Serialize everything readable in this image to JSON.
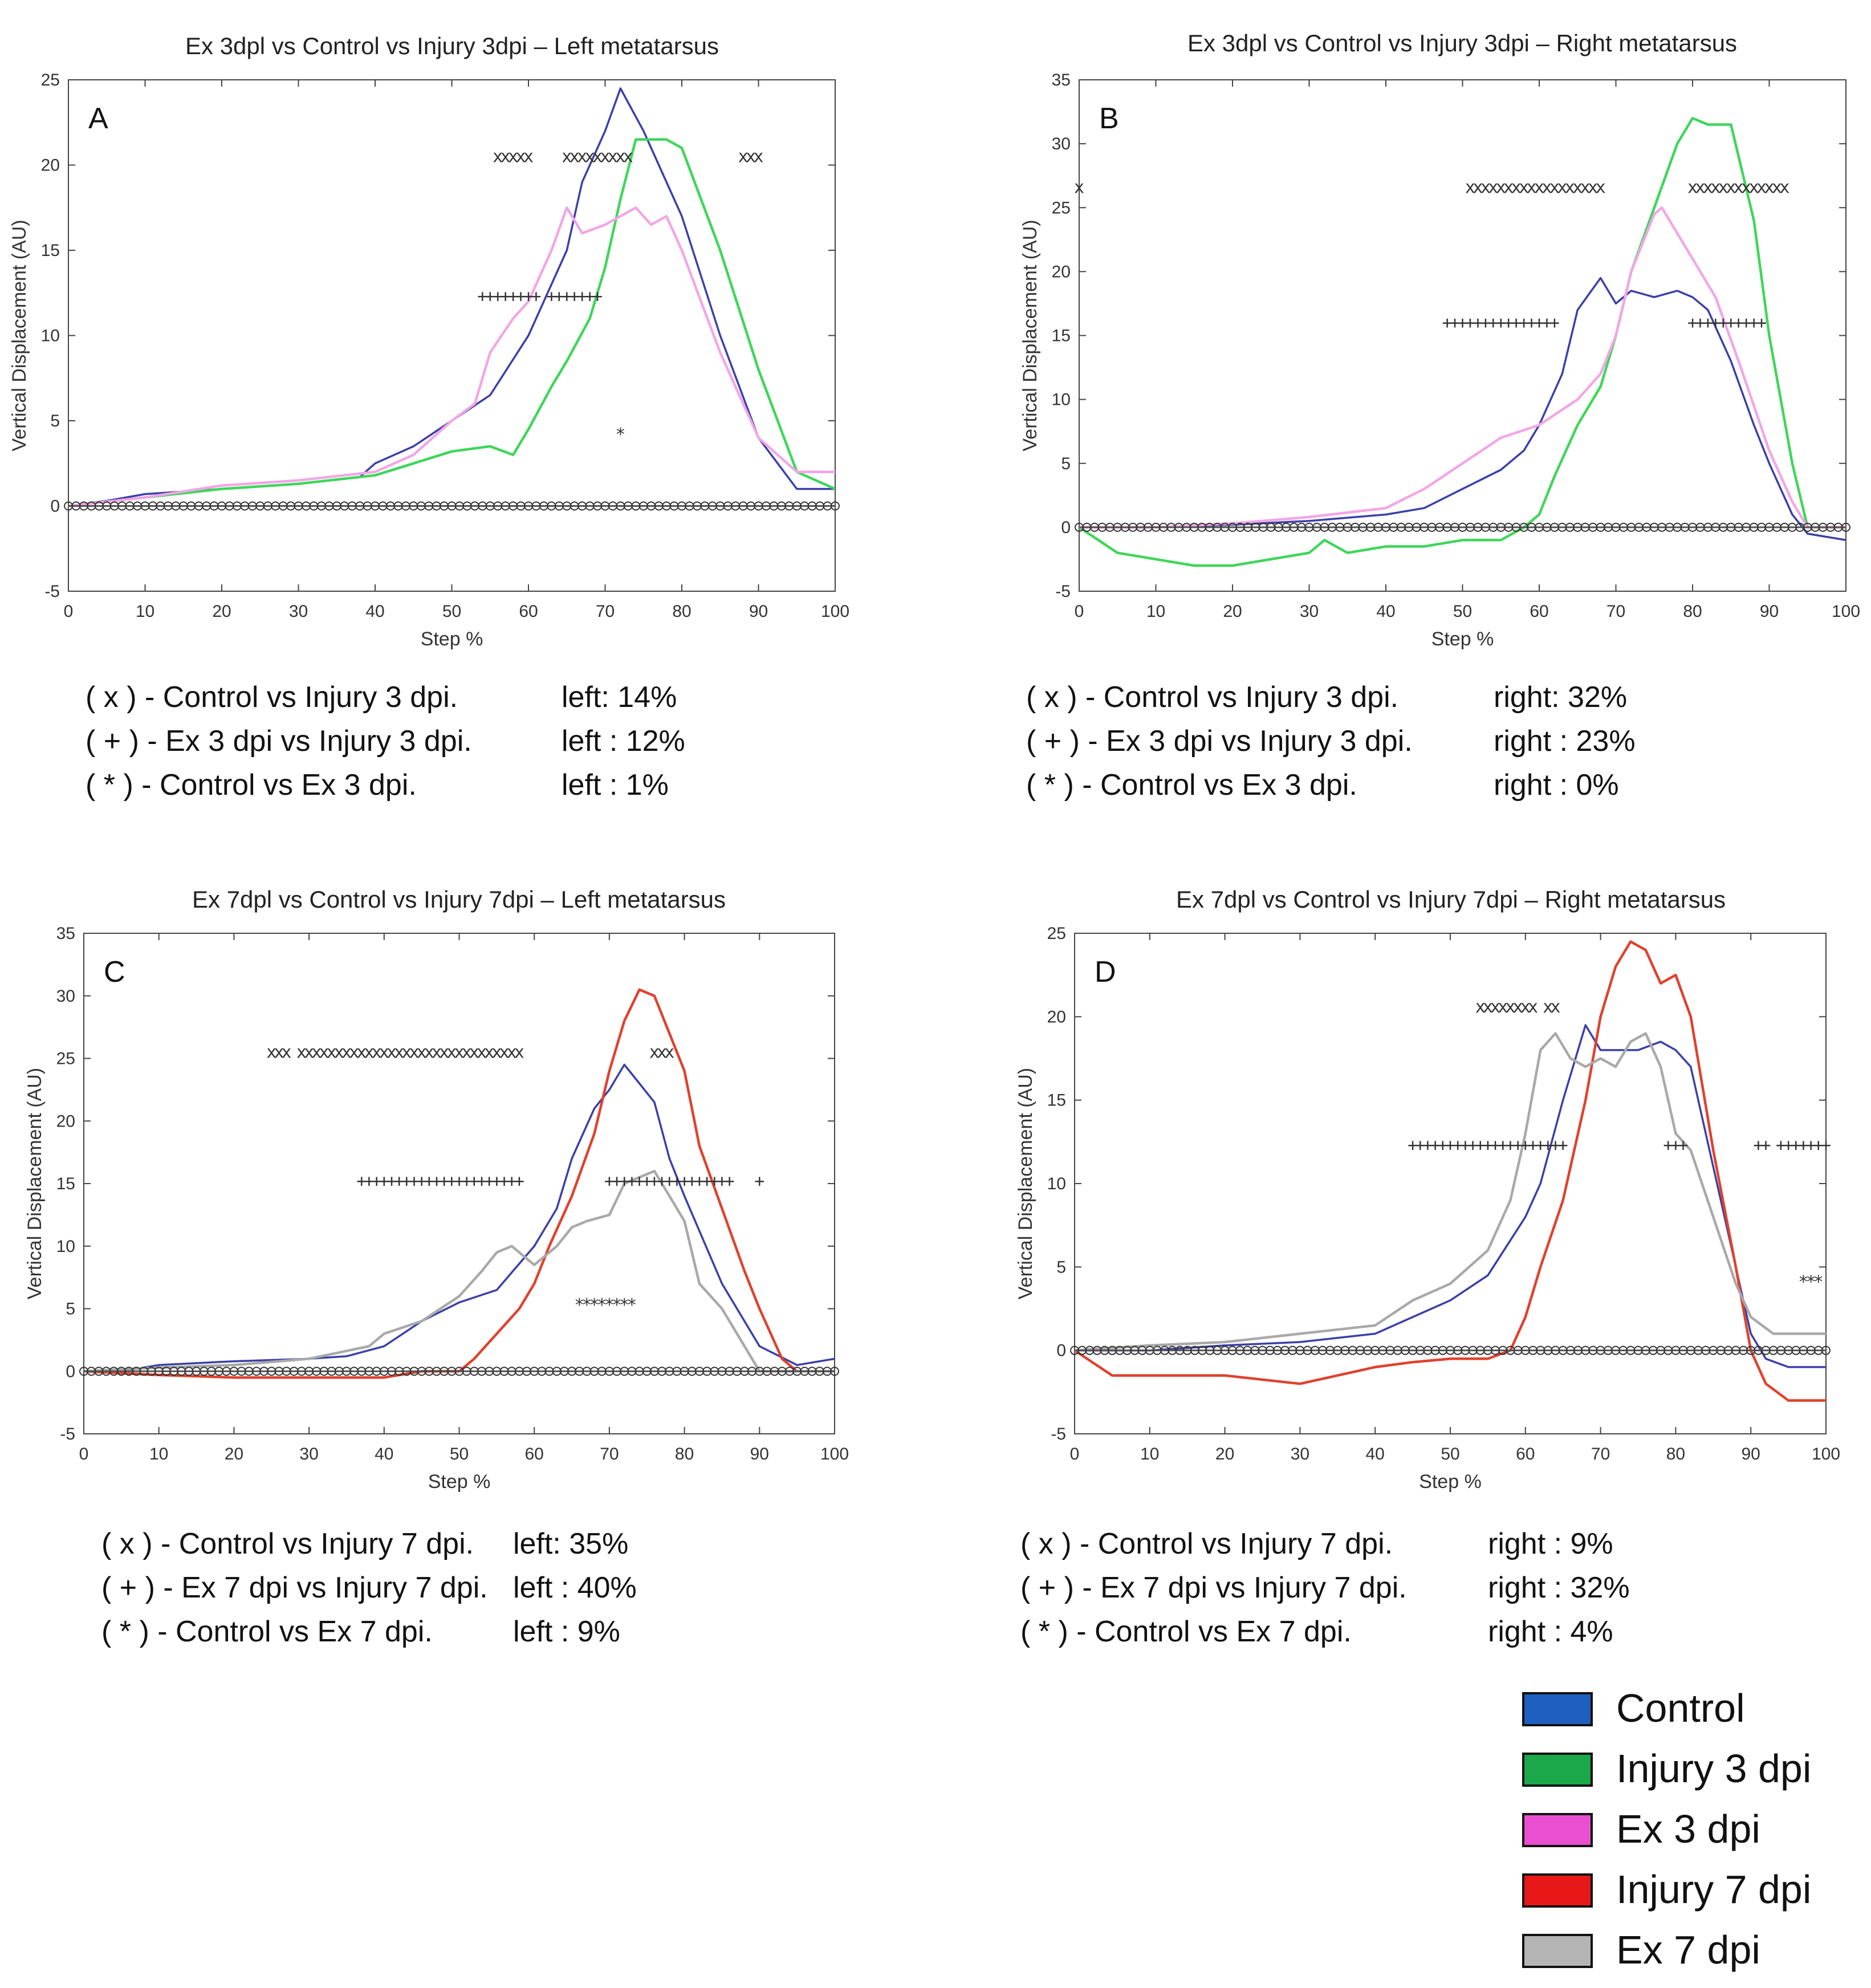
{
  "legend": {
    "items": [
      {
        "label": "Control",
        "color": "#1f5fbf"
      },
      {
        "label": "Injury 3 dpi",
        "color": "#1aa84a"
      },
      {
        "label": "Ex 3 dpi",
        "color": "#e94fd0"
      },
      {
        "label": "Injury 7 dpi",
        "color": "#e81818"
      },
      {
        "label": "Ex 7 dpi",
        "color": "#b4b4b4"
      }
    ]
  },
  "line_colors": {
    "control": "#3b3fa8",
    "injury3": "#3fd65a",
    "ex3": "#f2a6e6",
    "injury7": "#e0412e",
    "ex7": "#a9a9a9"
  },
  "chart_data": [
    {
      "id": "A",
      "type": "line",
      "title": "Ex 3dpl vs Control vs Injury 3dpi – Left metatarsus",
      "xlabel": "Step %",
      "ylabel": "Vertical Displacement (AU)",
      "xlim": [
        0,
        100
      ],
      "ylim": [
        -5,
        25
      ],
      "xticks": [
        0,
        10,
        20,
        30,
        40,
        50,
        60,
        70,
        80,
        90,
        100
      ],
      "yticks": [
        -5,
        0,
        5,
        10,
        15,
        20,
        25
      ],
      "series": [
        {
          "key": "control",
          "x": [
            0,
            5,
            10,
            20,
            30,
            38,
            40,
            45,
            50,
            55,
            60,
            65,
            67,
            70,
            72,
            75,
            78,
            80,
            85,
            90,
            95,
            100
          ],
          "y": [
            0,
            0.3,
            0.7,
            1.0,
            1.3,
            1.7,
            2.5,
            3.5,
            5,
            6.5,
            10,
            15,
            19,
            22,
            24.5,
            22,
            19,
            17,
            10,
            4,
            1,
            1
          ]
        },
        {
          "key": "injury3",
          "x": [
            0,
            10,
            20,
            30,
            40,
            45,
            50,
            55,
            58,
            60,
            63,
            65,
            68,
            70,
            72,
            74,
            76,
            78,
            80,
            85,
            90,
            95,
            100
          ],
          "y": [
            0,
            0.5,
            1.0,
            1.3,
            1.8,
            2.5,
            3.2,
            3.5,
            3,
            4.5,
            7,
            8.5,
            11,
            14,
            18,
            21.5,
            21.5,
            21.5,
            21,
            15,
            8,
            2,
            1
          ]
        },
        {
          "key": "ex3",
          "x": [
            0,
            10,
            20,
            30,
            40,
            45,
            50,
            53,
            55,
            58,
            60,
            63,
            65,
            67,
            70,
            72,
            74,
            76,
            78,
            80,
            85,
            90,
            95,
            100
          ],
          "y": [
            0,
            0.5,
            1.2,
            1.5,
            2,
            3,
            5,
            6,
            9,
            11,
            12,
            15,
            17.5,
            16,
            16.5,
            17,
            17.5,
            16.5,
            17,
            15,
            9,
            4,
            2,
            2
          ]
        }
      ],
      "markers": [
        {
          "symbol": "x",
          "y": 20.5,
          "ranges": [
            [
              56,
              60
            ],
            [
              65,
              73
            ],
            [
              88,
              90
            ]
          ]
        },
        {
          "symbol": "+",
          "y": 12.3,
          "ranges": [
            [
              54,
              61
            ],
            [
              63,
              69
            ]
          ]
        },
        {
          "symbol": "*",
          "y": 4.2,
          "ranges": [
            [
              72,
              72
            ]
          ]
        }
      ],
      "zero_markers": true,
      "stats": [
        {
          "symbol": "( x ) - Control vs Injury 3 dpi.",
          "value": "left: 14%"
        },
        {
          "symbol": "( + ) - Ex 3 dpi vs Injury 3 dpi.",
          "value": "left : 12%"
        },
        {
          "symbol": "( * ) - Control vs Ex 3 dpi.",
          "value": "left :  1%"
        }
      ]
    },
    {
      "id": "B",
      "type": "line",
      "title": "Ex 3dpl vs Control vs Injury 3dpi – Right metatarsus",
      "xlabel": "Step %",
      "ylabel": "Vertical Displacement (AU)",
      "xlim": [
        0,
        100
      ],
      "ylim": [
        -5,
        35
      ],
      "xticks": [
        0,
        10,
        20,
        30,
        40,
        50,
        60,
        70,
        80,
        90,
        100
      ],
      "yticks": [
        -5,
        0,
        5,
        10,
        15,
        20,
        25,
        30,
        35
      ],
      "series": [
        {
          "key": "control",
          "x": [
            0,
            10,
            20,
            30,
            40,
            45,
            50,
            55,
            58,
            60,
            63,
            65,
            68,
            70,
            72,
            75,
            78,
            80,
            82,
            85,
            88,
            90,
            93,
            95,
            100
          ],
          "y": [
            0,
            0,
            0.2,
            0.5,
            1,
            1.5,
            3,
            4.5,
            6,
            8,
            12,
            17,
            19.5,
            17.5,
            18.5,
            18,
            18.5,
            18,
            17,
            13,
            8,
            5,
            1,
            -0.5,
            -1
          ]
        },
        {
          "key": "injury3",
          "x": [
            0,
            5,
            10,
            15,
            20,
            25,
            30,
            32,
            35,
            40,
            45,
            50,
            55,
            58,
            60,
            62,
            65,
            68,
            70,
            72,
            75,
            78,
            80,
            82,
            85,
            88,
            90,
            93,
            95,
            100
          ],
          "y": [
            0,
            -2,
            -2.5,
            -3,
            -3,
            -2.5,
            -2,
            -1,
            -2,
            -1.5,
            -1.5,
            -1,
            -1,
            0,
            1,
            4,
            8,
            11,
            15,
            20,
            25,
            30,
            32,
            31.5,
            31.5,
            24,
            15,
            5,
            0,
            0
          ]
        },
        {
          "key": "ex3",
          "x": [
            0,
            10,
            20,
            30,
            40,
            45,
            50,
            55,
            60,
            65,
            68,
            70,
            72,
            75,
            76,
            78,
            80,
            83,
            86,
            90,
            93,
            95,
            100
          ],
          "y": [
            0,
            0,
            0.3,
            0.8,
            1.5,
            3,
            5,
            7,
            8,
            10,
            12,
            15,
            20,
            24.5,
            25,
            23,
            21,
            18,
            13,
            6,
            2,
            0,
            0
          ]
        }
      ],
      "markers": [
        {
          "symbol": "x",
          "y": 26.6,
          "ranges": [
            [
              0,
              0
            ],
            [
              51,
              68
            ],
            [
              80,
              92
            ]
          ]
        },
        {
          "symbol": "+",
          "y": 16,
          "ranges": [
            [
              48,
              62
            ],
            [
              80,
              89
            ]
          ]
        }
      ],
      "zero_markers": true,
      "stats": [
        {
          "symbol": "( x ) - Control vs Injury 3 dpi.",
          "value": "right: 32%"
        },
        {
          "symbol": "( + ) - Ex 3 dpi vs Injury 3 dpi.",
          "value": "right : 23%"
        },
        {
          "symbol": "( * ) - Control vs Ex 3 dpi.",
          "value": "right : 0%"
        }
      ]
    },
    {
      "id": "C",
      "type": "line",
      "title": "Ex 7dpl vs Control vs Injury 7dpi – Left metatarsus",
      "xlabel": "Step %",
      "ylabel": "Vertical Displacement (AU)",
      "xlim": [
        0,
        100
      ],
      "ylim": [
        -5,
        35
      ],
      "xticks": [
        0,
        10,
        20,
        30,
        40,
        50,
        60,
        70,
        80,
        90,
        100
      ],
      "yticks": [
        -5,
        0,
        5,
        10,
        15,
        20,
        25,
        30,
        35
      ],
      "series": [
        {
          "key": "control",
          "x": [
            0,
            5,
            10,
            20,
            30,
            35,
            40,
            45,
            50,
            55,
            60,
            63,
            65,
            68,
            70,
            72,
            74,
            76,
            78,
            80,
            85,
            90,
            95,
            100
          ],
          "y": [
            0,
            0,
            0.5,
            0.8,
            1,
            1.2,
            2,
            4,
            5.5,
            6.5,
            10,
            13,
            17,
            21,
            22.5,
            24.5,
            23,
            21.5,
            17,
            14,
            7,
            2,
            0.5,
            1
          ]
        },
        {
          "key": "injury7",
          "x": [
            0,
            10,
            20,
            30,
            40,
            45,
            50,
            52,
            55,
            58,
            60,
            62,
            65,
            68,
            70,
            72,
            74,
            76,
            78,
            80,
            82,
            85,
            88,
            90,
            93,
            95,
            100
          ],
          "y": [
            0,
            -0.3,
            -0.5,
            -0.5,
            -0.5,
            0,
            0,
            1,
            3,
            5,
            7,
            10,
            14,
            19,
            24,
            28,
            30.5,
            30,
            27,
            24,
            18,
            13,
            8,
            5,
            1,
            0,
            0
          ]
        },
        {
          "key": "ex7",
          "x": [
            0,
            10,
            20,
            30,
            38,
            40,
            45,
            50,
            53,
            55,
            57,
            60,
            63,
            65,
            67,
            70,
            72,
            74,
            76,
            78,
            80,
            82,
            85,
            88,
            90,
            93,
            95,
            100
          ],
          "y": [
            0,
            0.3,
            0.5,
            1,
            2,
            3,
            4,
            6,
            8,
            9.5,
            10,
            8.5,
            10,
            11.5,
            12,
            12.5,
            15,
            15.5,
            16,
            14,
            12,
            7,
            5,
            2,
            0,
            0,
            0,
            0
          ]
        }
      ],
      "markers": [
        {
          "symbol": "x",
          "y": 25.5,
          "ranges": [
            [
              25,
              27
            ],
            [
              29,
              58
            ],
            [
              76,
              78
            ]
          ]
        },
        {
          "symbol": "+",
          "y": 15.2,
          "ranges": [
            [
              37,
              58
            ],
            [
              70,
              86
            ],
            [
              90,
              90
            ]
          ]
        },
        {
          "symbol": "*",
          "y": 5.3,
          "ranges": [
            [
              66,
              73
            ]
          ]
        }
      ],
      "zero_markers": true,
      "stats": [
        {
          "symbol": "( x ) - Control vs Injury 7 dpi.",
          "value": "left: 35%"
        },
        {
          "symbol": "( + ) - Ex 7 dpi vs Injury 7 dpi.",
          "value": "left : 40%"
        },
        {
          "symbol": "( * ) - Control vs Ex 7 dpi.",
          "value": "left :   9%"
        }
      ]
    },
    {
      "id": "D",
      "type": "line",
      "title": "Ex 7dpl vs Control vs Injury 7dpi – Right metatarsus",
      "xlabel": "Step %",
      "ylabel": "Vertical Displacement (AU)",
      "xlim": [
        0,
        100
      ],
      "ylim": [
        -5,
        25
      ],
      "xticks": [
        0,
        10,
        20,
        30,
        40,
        50,
        60,
        70,
        80,
        90,
        100
      ],
      "yticks": [
        -5,
        0,
        5,
        10,
        15,
        20,
        25
      ],
      "series": [
        {
          "key": "control",
          "x": [
            0,
            10,
            20,
            30,
            40,
            45,
            50,
            55,
            60,
            62,
            65,
            68,
            70,
            72,
            75,
            78,
            80,
            82,
            85,
            88,
            90,
            92,
            95,
            100
          ],
          "y": [
            0,
            0,
            0.3,
            0.5,
            1,
            2,
            3,
            4.5,
            8,
            10,
            15,
            19.5,
            18,
            18,
            18,
            18.5,
            18,
            17,
            11,
            5,
            1,
            -0.5,
            -1,
            -1
          ]
        },
        {
          "key": "injury7",
          "x": [
            0,
            5,
            10,
            20,
            30,
            35,
            40,
            45,
            50,
            55,
            58,
            60,
            62,
            65,
            68,
            70,
            72,
            74,
            76,
            78,
            80,
            82,
            85,
            88,
            90,
            92,
            95,
            98,
            100
          ],
          "y": [
            0,
            -1.5,
            -1.5,
            -1.5,
            -2,
            -1.5,
            -1,
            -0.7,
            -0.5,
            -0.5,
            0,
            2,
            5,
            9,
            15,
            20,
            23,
            24.5,
            24,
            22,
            22.5,
            20,
            12,
            5,
            0,
            -2,
            -3,
            -3,
            -3
          ]
        },
        {
          "key": "ex7",
          "x": [
            0,
            10,
            20,
            30,
            40,
            45,
            50,
            55,
            58,
            60,
            62,
            64,
            66,
            68,
            70,
            72,
            74,
            76,
            78,
            80,
            82,
            85,
            88,
            90,
            93,
            95,
            100
          ],
          "y": [
            0,
            0.3,
            0.5,
            1,
            1.5,
            3,
            4,
            6,
            9,
            13,
            18,
            19,
            17.5,
            17,
            17.5,
            17,
            18.5,
            19,
            17,
            13,
            12,
            8,
            4,
            2,
            1,
            1,
            1
          ]
        }
      ],
      "markers": [
        {
          "symbol": "x",
          "y": 20.6,
          "ranges": [
            [
              54,
              60
            ],
            [
              61,
              61
            ],
            [
              63,
              64
            ]
          ]
        },
        {
          "symbol": "+",
          "y": 12.3,
          "ranges": [
            [
              45,
              65
            ],
            [
              79,
              81
            ],
            [
              91,
              92
            ],
            [
              94,
              100
            ]
          ]
        },
        {
          "symbol": "*",
          "y": 4.1,
          "ranges": [
            [
              97,
              99
            ]
          ]
        }
      ],
      "zero_markers": true,
      "stats": [
        {
          "symbol": "( x ) - Control vs Injury 7 dpi.",
          "value": "right :  9%"
        },
        {
          "symbol": "( + ) - Ex 7 dpi vs Injury 7 dpi.",
          "value": "right : 32%"
        },
        {
          "symbol": "( * ) - Control vs Ex 7 dpi.",
          "value": "right : 4%"
        }
      ]
    }
  ]
}
